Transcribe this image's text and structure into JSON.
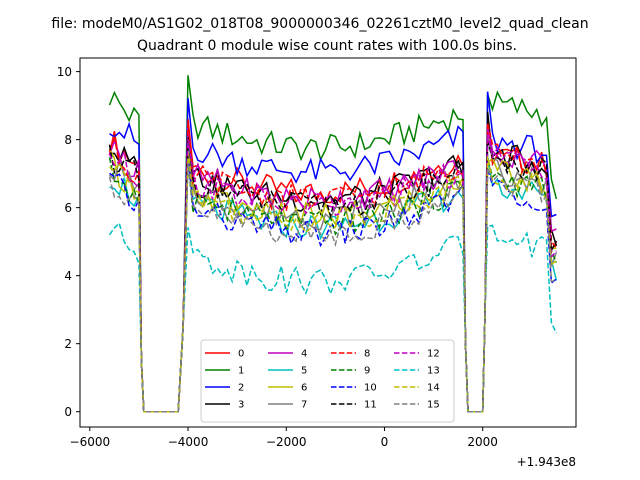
{
  "chart_data": {
    "type": "line",
    "suptitle": "file: modeM0/AS1G02_018T08_9000000346_02261cztM0_level2_quad_clean",
    "title": "Quadrant 0 module wise count rates with 100.0s bins.",
    "xlabel": "",
    "ylabel": "",
    "x_offset_label": "+1.943e8",
    "xlim": [
      -6200,
      3900
    ],
    "ylim": [
      -0.45,
      10.4
    ],
    "x_ticks": [
      -6000,
      -4000,
      -2000,
      0,
      2000
    ],
    "x_tick_labels": [
      "−6000",
      "−4000",
      "−2000",
      "0",
      "2000"
    ],
    "y_ticks": [
      0,
      2,
      4,
      6,
      8,
      10
    ],
    "y_tick_labels": [
      "0",
      "2",
      "4",
      "6",
      "8",
      "10"
    ],
    "grid": false,
    "legend_position": "lower-center",
    "legend_columns": 4,
    "series": [
      {
        "name": "0",
        "color": "#ff0000",
        "dash": "solid",
        "level1": 7.2,
        "level2": 7.2,
        "peak": 8.4
      },
      {
        "name": "1",
        "color": "#008000",
        "dash": "solid",
        "level1": 8.5,
        "level2": 8.7,
        "peak": 9.6
      },
      {
        "name": "2",
        "color": "#0000ff",
        "dash": "solid",
        "level1": 7.8,
        "level2": 7.6,
        "peak": 9.2
      },
      {
        "name": "3",
        "color": "#000000",
        "dash": "solid",
        "level1": 7.0,
        "level2": 7.2,
        "peak": 8.5
      },
      {
        "name": "4",
        "color": "#bf00bf",
        "dash": "solid",
        "level1": 7.0,
        "level2": 7.3,
        "peak": 8.1
      },
      {
        "name": "5",
        "color": "#00bfbf",
        "dash": "solid",
        "level1": 6.2,
        "level2": 6.3,
        "peak": 7.6
      },
      {
        "name": "6",
        "color": "#bfbf00",
        "dash": "solid",
        "level1": 6.5,
        "level2": 6.7,
        "peak": 7.6
      },
      {
        "name": "7",
        "color": "#808080",
        "dash": "solid",
        "level1": 6.5,
        "level2": 6.7,
        "peak": 7.7
      },
      {
        "name": "8",
        "color": "#ff0000",
        "dash": "dashed",
        "level1": 7.0,
        "level2": 7.2,
        "peak": 8.2
      },
      {
        "name": "9",
        "color": "#008000",
        "dash": "dashed",
        "level1": 6.3,
        "level2": 6.5,
        "peak": 7.7
      },
      {
        "name": "10",
        "color": "#0000ff",
        "dash": "dashed",
        "level1": 6.0,
        "level2": 6.2,
        "peak": 7.3
      },
      {
        "name": "11",
        "color": "#000000",
        "dash": "dashed",
        "level1": 6.8,
        "level2": 7.0,
        "peak": 8.3
      },
      {
        "name": "12",
        "color": "#bf00bf",
        "dash": "dashed",
        "level1": 6.8,
        "level2": 7.1,
        "peak": 8.0
      },
      {
        "name": "13",
        "color": "#00bfbf",
        "dash": "dashed",
        "level1": 4.6,
        "level2": 4.8,
        "peak": 5.8
      },
      {
        "name": "14",
        "color": "#bfbf00",
        "dash": "dashed",
        "level1": 6.4,
        "level2": 6.6,
        "peak": 7.4
      },
      {
        "name": "15",
        "color": "#808080",
        "dash": "dashed",
        "level1": 6.0,
        "level2": 6.3,
        "peak": 7.2
      }
    ],
    "segments": [
      {
        "x_start": -5600,
        "x_end": -5000,
        "profile": "start"
      },
      {
        "x_start": -4900,
        "x_end": -4200,
        "value": 0
      },
      {
        "x_start": -4000,
        "x_end": 1600,
        "profile": "orbit1"
      },
      {
        "x_start": 1700,
        "x_end": 2000,
        "value": 0
      },
      {
        "x_start": 2100,
        "x_end": 3500,
        "profile": "orbit2"
      }
    ]
  }
}
